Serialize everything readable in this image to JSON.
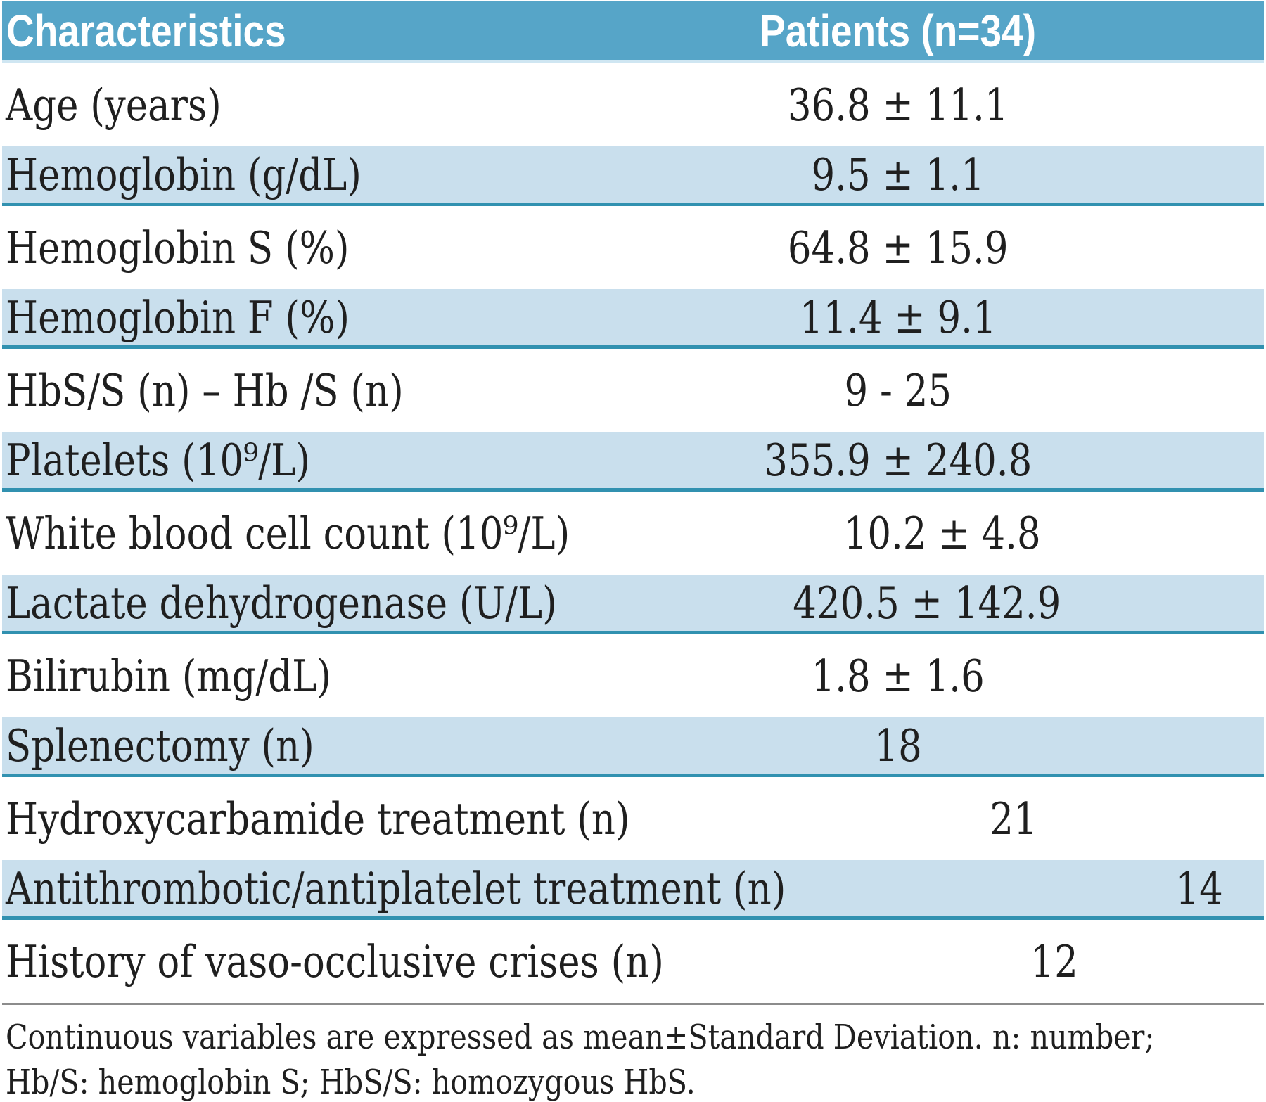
{
  "table": {
    "columns": [
      {
        "label": "Characteristics"
      },
      {
        "label": "Patients (n=34)"
      }
    ],
    "rows": [
      {
        "label": "Age (years)",
        "value": "36.8 ± 11.1",
        "shaded": false
      },
      {
        "label": "Hemoglobin (g/dL)",
        "value": "9.5 ± 1.1",
        "shaded": true
      },
      {
        "label": "Hemoglobin S (%)",
        "value": "64.8 ± 15.9",
        "shaded": false
      },
      {
        "label": "Hemoglobin F (%)",
        "value": "11.4 ± 9.1",
        "shaded": true
      },
      {
        "label": "HbS/S (n) – Hb /S (n)",
        "value": "9 - 25",
        "shaded": false
      },
      {
        "label": "Platelets (10⁹/L)",
        "value": "355.9 ± 240.8",
        "shaded": true
      },
      {
        "label": "White blood cell count (10⁹/L)",
        "value": "10.2 ± 4.8",
        "shaded": false
      },
      {
        "label": "Lactate dehydrogenase (U/L)",
        "value": "420.5 ± 142.9",
        "shaded": true
      },
      {
        "label": "Bilirubin (mg/dL)",
        "value": "1.8 ± 1.6",
        "shaded": false
      },
      {
        "label": "Splenectomy (n)",
        "value": "18",
        "shaded": true
      },
      {
        "label": "Hydroxycarbamide treatment (n)",
        "value": "21",
        "shaded": false
      },
      {
        "label": "Antithrombotic/antiplatelet treatment (n)",
        "value": "14",
        "shaded": true
      },
      {
        "label": "History of vaso-occlusive crises (n)",
        "value": "12",
        "shaded": false
      }
    ],
    "footnote_lines": [
      "Continuous variables are expressed as mean±Standard Deviation. n: number;",
      "Hb/S: hemoglobin S; HbS/S: homozygous HbS."
    ],
    "colors": {
      "header_bg": "#56a5c8",
      "header_edge": "#cfe6f2",
      "header_text": "#ffffff",
      "row_shaded_bg": "#c9dfed",
      "separator_teal": "#3191b0",
      "footnote_rule": "#8c8c8c",
      "text": "#1f1f1f"
    }
  },
  "chart_data": {
    "type": "table",
    "title": "Patient characteristics",
    "columns": [
      "Characteristics",
      "Patients (n=34)"
    ],
    "rows": [
      [
        "Age (years)",
        "36.8 ± 11.1"
      ],
      [
        "Hemoglobin (g/dL)",
        "9.5 ± 1.1"
      ],
      [
        "Hemoglobin S (%)",
        "64.8 ± 15.9"
      ],
      [
        "Hemoglobin F (%)",
        "11.4 ± 9.1"
      ],
      [
        "HbS/S (n) – Hb /S (n)",
        "9 - 25"
      ],
      [
        "Platelets (10⁹/L)",
        "355.9 ± 240.8"
      ],
      [
        "White blood cell count (10⁹/L)",
        "10.2 ± 4.8"
      ],
      [
        "Lactate dehydrogenase (U/L)",
        "420.5 ± 142.9"
      ],
      [
        "Bilirubin (mg/dL)",
        "1.8 ± 1.6"
      ],
      [
        "Splenectomy (n)",
        "18"
      ],
      [
        "Hydroxycarbamide treatment (n)",
        "21"
      ],
      [
        "Antithrombotic/antiplatelet treatment (n)",
        "14"
      ],
      [
        "History of vaso-occlusive crises (n)",
        "12"
      ]
    ],
    "footnote": "Continuous variables are expressed as mean±Standard Deviation. n: number; Hb/S: hemoglobin S; HbS/S: homozygous HbS."
  }
}
